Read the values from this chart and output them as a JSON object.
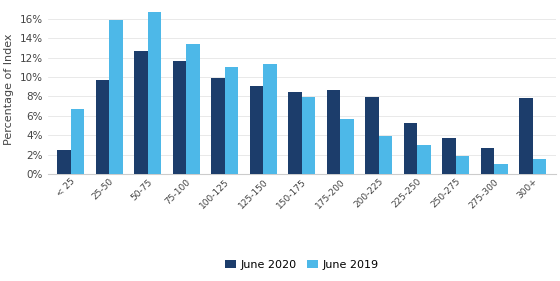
{
  "categories": [
    "< 25",
    "25-50",
    "50-75",
    "75-100",
    "100-125",
    "125-150",
    "150-175",
    "175-200",
    "200-225",
    "225-250",
    "250-275",
    "275-300",
    "300+"
  ],
  "june2020": [
    2.5,
    9.7,
    12.7,
    11.7,
    9.9,
    9.1,
    8.5,
    8.7,
    7.9,
    5.3,
    3.7,
    2.7,
    7.8
  ],
  "june2019": [
    6.7,
    15.9,
    16.7,
    13.4,
    11.0,
    11.3,
    7.9,
    5.7,
    3.9,
    3.0,
    1.9,
    1.1,
    1.6
  ],
  "color2020": "#1c3d6b",
  "color2019": "#4db8e8",
  "ylabel": "Percentage of Index",
  "legend2020": "June 2020",
  "legend2019": "June 2019",
  "ylim": [
    0,
    17.5
  ],
  "yticks": [
    0,
    2,
    4,
    6,
    8,
    10,
    12,
    14,
    16
  ],
  "background_color": "#ffffff",
  "bar_width": 0.35
}
